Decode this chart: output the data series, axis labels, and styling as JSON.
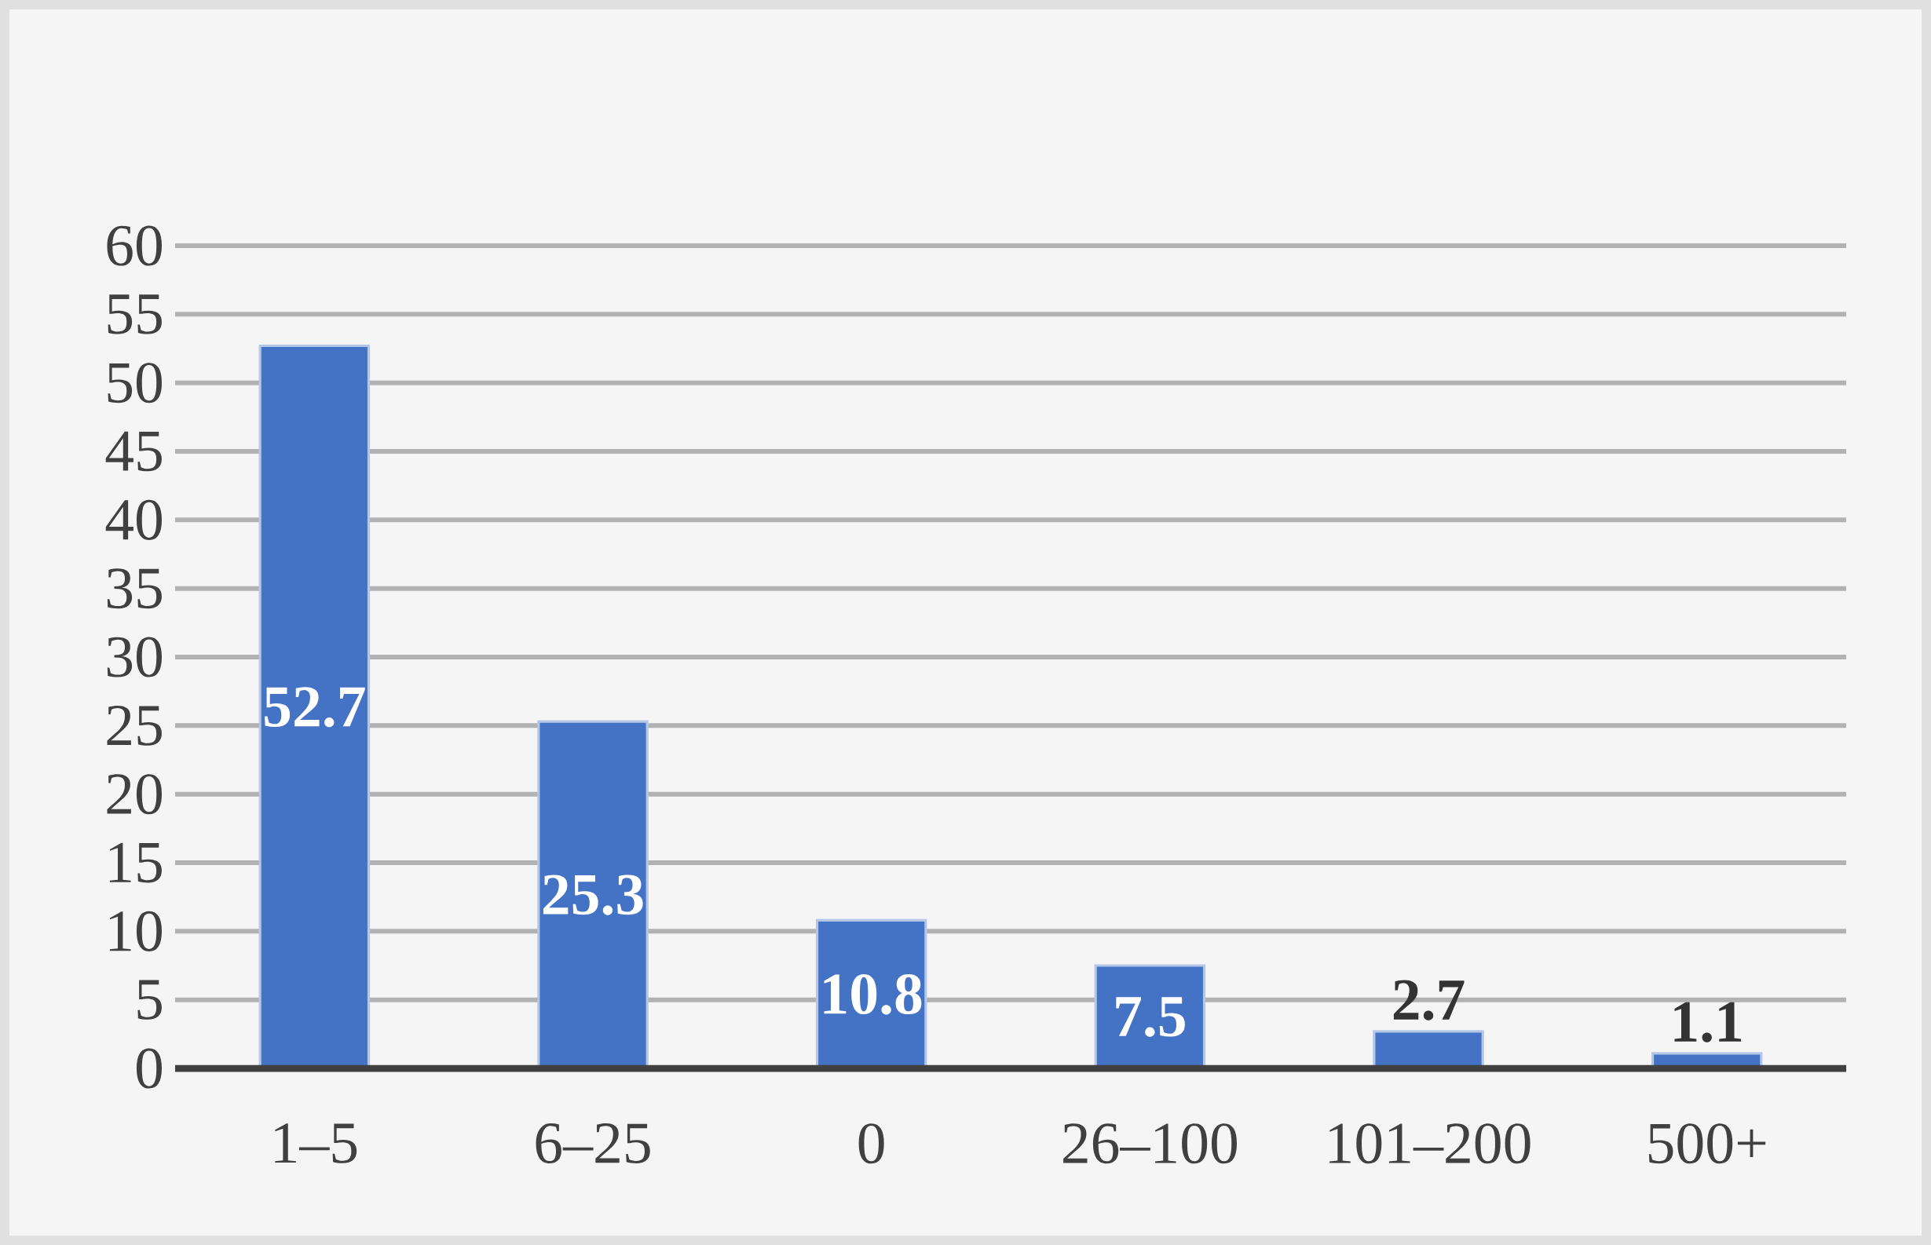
{
  "chart_data": {
    "type": "bar",
    "categories": [
      "1–5",
      "6–25",
      "0",
      "26–100",
      "101–200",
      "500+"
    ],
    "values": [
      52.7,
      25.3,
      10.8,
      7.5,
      2.7,
      1.1
    ],
    "color": "#4472c4",
    "ylim": [
      0,
      60
    ],
    "yticks": [
      0,
      5,
      10,
      15,
      20,
      25,
      30,
      35,
      40,
      45,
      50,
      55,
      60
    ],
    "grid": "y",
    "data_labels": true
  }
}
